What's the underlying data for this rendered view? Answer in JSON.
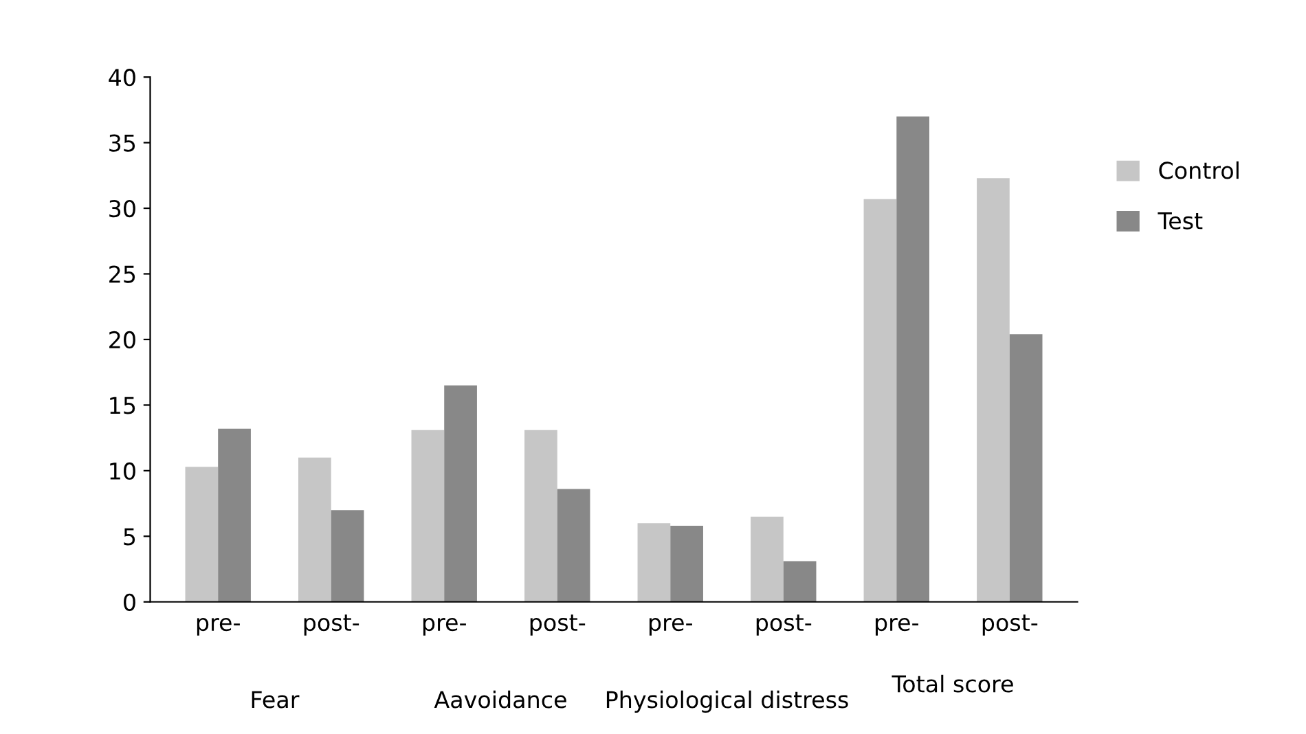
{
  "chart_data": {
    "type": "bar",
    "categories": [
      "pre-",
      "post-",
      "pre-",
      "post-",
      "pre-",
      "post-",
      "pre-",
      "post-"
    ],
    "series": [
      {
        "name": "Control",
        "color": "#c6c6c6",
        "values": [
          10.3,
          11.0,
          13.1,
          13.1,
          6.0,
          6.5,
          30.7,
          32.3
        ]
      },
      {
        "name": "Test",
        "color": "#888888",
        "values": [
          13.2,
          7.0,
          16.5,
          8.6,
          5.8,
          3.1,
          37.0,
          20.4
        ]
      }
    ],
    "annotations": [
      "Fear",
      "Aavoidance",
      "Physiological distress",
      "Total score"
    ],
    "ylim": [
      0,
      40
    ],
    "yticks": [
      0,
      5,
      10,
      15,
      20,
      25,
      30,
      35,
      40
    ],
    "grid": false,
    "legend": "top right"
  }
}
